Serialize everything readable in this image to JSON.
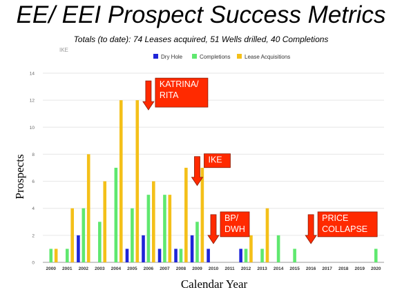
{
  "title": "EE/ EEI Prospect Success Metrics",
  "subtitle": "Totals (to date): 74 Leases acquired, 51 Wells drilled, 40 Completions",
  "corner_label": "IKE",
  "colors": {
    "dry": "#1f25d8",
    "comp": "#5fe86f",
    "lease": "#f4c019",
    "callout_fill": "#ff2a00",
    "callout_border": "#8a1a00",
    "grid": "#e6e6e6"
  },
  "chart_data": {
    "type": "bar",
    "categories": [
      "2000",
      "2001",
      "2002",
      "2003",
      "2004",
      "2005",
      "2006",
      "2007",
      "2008",
      "2009",
      "2010",
      "2011",
      "2012",
      "2013",
      "2014",
      "2015",
      "2016",
      "2017",
      "2018",
      "2019",
      "2020"
    ],
    "series": [
      {
        "name": "Dry Hole",
        "values": [
          0,
          0,
          2,
          0,
          0,
          1,
          2,
          1,
          1,
          2,
          1,
          0,
          1,
          0,
          0,
          0,
          0,
          0,
          0,
          0,
          0
        ]
      },
      {
        "name": "Completions",
        "values": [
          1,
          1,
          4,
          3,
          7,
          4,
          5,
          5,
          1,
          3,
          0,
          0,
          1,
          1,
          2,
          1,
          0,
          0,
          0,
          0,
          1
        ]
      },
      {
        "name": "Lease Acquisitions",
        "values": [
          1,
          4,
          8,
          6,
          12,
          12,
          6,
          5,
          7,
          7,
          0,
          0,
          2,
          4,
          0,
          0,
          0,
          0,
          0,
          0,
          0
        ]
      }
    ],
    "xlabel": "Calendar Year",
    "ylabel": "Prospects",
    "ylim": [
      0,
      14
    ],
    "yticks": [
      0,
      2,
      4,
      6,
      8,
      10,
      12,
      14
    ],
    "grid": true,
    "legend_position": "top-center",
    "annotations": [
      {
        "lines": [
          "KATRINA/",
          "RITA"
        ],
        "year": "2006",
        "value": 12
      },
      {
        "lines": [
          "IKE"
        ],
        "year": "2009",
        "value": 6.4
      },
      {
        "lines": [
          "BP/",
          "DWH"
        ],
        "year": "2010",
        "value": 2.1
      },
      {
        "lines": [
          "PRICE",
          "COLLAPSE"
        ],
        "year": "2016",
        "value": 2.1
      }
    ]
  }
}
